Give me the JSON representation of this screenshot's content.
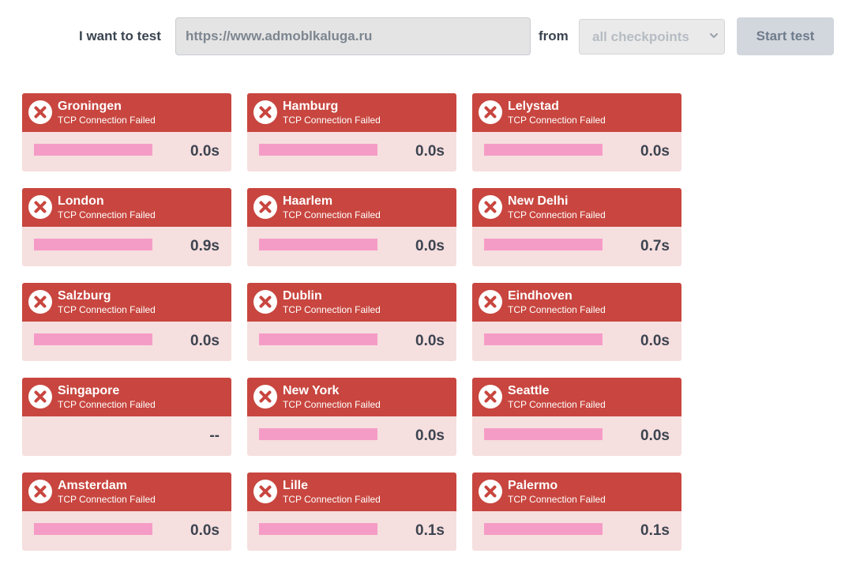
{
  "toolbar": {
    "test_label": "I want to test",
    "url_value": "https://www.admoblkaluga.ru",
    "from_label": "from",
    "checkpoint_value": "all checkpoints",
    "start_label": "Start test"
  },
  "colors": {
    "card_header": "#c8463f",
    "card_body": "#f6dfdf",
    "bar": "#f59cc6",
    "button_bg": "#d2d6dd"
  },
  "icons": {
    "status": "error-x-icon",
    "select": "chevron-down-icon"
  },
  "cards": [
    {
      "city": "Groningen",
      "status": "TCP Connection Failed",
      "time": "0.0s",
      "has_bar": true
    },
    {
      "city": "Hamburg",
      "status": "TCP Connection Failed",
      "time": "0.0s",
      "has_bar": true
    },
    {
      "city": "Lelystad",
      "status": "TCP Connection Failed",
      "time": "0.0s",
      "has_bar": true
    },
    {
      "city": "London",
      "status": "TCP Connection Failed",
      "time": "0.9s",
      "has_bar": true
    },
    {
      "city": "Haarlem",
      "status": "TCP Connection Failed",
      "time": "0.0s",
      "has_bar": true
    },
    {
      "city": "New Delhi",
      "status": "TCP Connection Failed",
      "time": "0.7s",
      "has_bar": true
    },
    {
      "city": "Salzburg",
      "status": "TCP Connection Failed",
      "time": "0.0s",
      "has_bar": true
    },
    {
      "city": "Dublin",
      "status": "TCP Connection Failed",
      "time": "0.0s",
      "has_bar": true
    },
    {
      "city": "Eindhoven",
      "status": "TCP Connection Failed",
      "time": "0.0s",
      "has_bar": true
    },
    {
      "city": "Singapore",
      "status": "TCP Connection Failed",
      "time": "--",
      "has_bar": false
    },
    {
      "city": "New York",
      "status": "TCP Connection Failed",
      "time": "0.0s",
      "has_bar": true
    },
    {
      "city": "Seattle",
      "status": "TCP Connection Failed",
      "time": "0.0s",
      "has_bar": true
    },
    {
      "city": "Amsterdam",
      "status": "TCP Connection Failed",
      "time": "0.0s",
      "has_bar": true
    },
    {
      "city": "Lille",
      "status": "TCP Connection Failed",
      "time": "0.1s",
      "has_bar": true
    },
    {
      "city": "Palermo",
      "status": "TCP Connection Failed",
      "time": "0.1s",
      "has_bar": true
    }
  ]
}
